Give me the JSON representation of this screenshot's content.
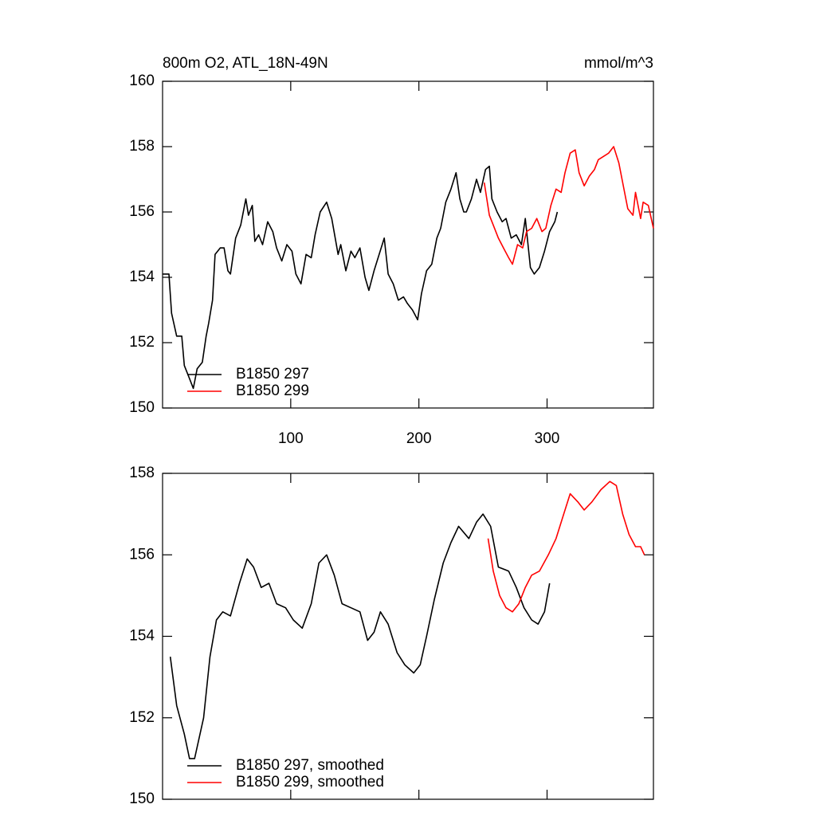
{
  "chart_data": [
    {
      "type": "line",
      "title": "800m O2, ATL_18N-49N",
      "units": "mmol/m^3",
      "xlim": [
        0,
        383
      ],
      "ylim": [
        150,
        160
      ],
      "xticks": [
        100,
        200,
        300
      ],
      "yticks": [
        150,
        152,
        154,
        156,
        158,
        160
      ],
      "xtick_labels": true,
      "series": [
        {
          "name": "B1850 297",
          "color": "#000000",
          "x": [
            0,
            5,
            7,
            11,
            15,
            17,
            21,
            24,
            27,
            31,
            34,
            36,
            39,
            41,
            45,
            48,
            51,
            53,
            57,
            61,
            65,
            67,
            70,
            72,
            75,
            78,
            82,
            86,
            89,
            93,
            97,
            101,
            104,
            108,
            112,
            116,
            119,
            123,
            128,
            132,
            137,
            139,
            143,
            147,
            150,
            154,
            158,
            161,
            165,
            169,
            173,
            176,
            180,
            184,
            188,
            191,
            195,
            199,
            202,
            206,
            210,
            214,
            217,
            221,
            225,
            229,
            232,
            235,
            237,
            241,
            245,
            248,
            252,
            255,
            257,
            261,
            265,
            268,
            272,
            276,
            280,
            283,
            287,
            290,
            294,
            298,
            302,
            306,
            308
          ],
          "values": [
            154.1,
            154.1,
            152.9,
            152.2,
            152.2,
            151.3,
            150.9,
            150.6,
            151.2,
            151.4,
            152.2,
            152.6,
            153.3,
            154.7,
            154.9,
            154.9,
            154.2,
            154.1,
            155.2,
            155.6,
            156.4,
            155.9,
            156.2,
            155.1,
            155.3,
            155.0,
            155.7,
            155.4,
            154.9,
            154.5,
            155.0,
            154.8,
            154.1,
            153.8,
            154.7,
            154.6,
            155.3,
            156.0,
            156.3,
            155.8,
            154.7,
            155.0,
            154.2,
            154.8,
            154.6,
            154.9,
            154.0,
            153.6,
            154.2,
            154.7,
            155.2,
            154.1,
            153.8,
            153.3,
            153.4,
            153.2,
            153.0,
            152.7,
            153.5,
            154.2,
            154.4,
            155.2,
            155.5,
            156.3,
            156.7,
            157.2,
            156.4,
            156.0,
            156.0,
            156.4,
            157.0,
            156.6,
            157.3,
            157.4,
            156.4,
            156.0,
            155.7,
            155.8,
            155.2,
            155.3,
            155.0,
            155.8,
            154.3,
            154.1,
            154.3,
            154.8,
            155.4,
            155.7,
            156.0
          ]
        },
        {
          "name": "B1850 299",
          "color": "#ff0000",
          "x": [
            251,
            255,
            258,
            262,
            266,
            270,
            273,
            277,
            281,
            284,
            288,
            292,
            296,
            299,
            303,
            307,
            311,
            314,
            318,
            322,
            325,
            329,
            333,
            337,
            340,
            344,
            348,
            352,
            356,
            359,
            363,
            367,
            369,
            373,
            375,
            379,
            383
          ],
          "values": [
            156.9,
            155.9,
            155.6,
            155.2,
            154.9,
            154.6,
            154.4,
            155.0,
            154.9,
            155.4,
            155.5,
            155.8,
            155.4,
            155.5,
            156.2,
            156.7,
            156.6,
            157.2,
            157.8,
            157.9,
            157.2,
            156.8,
            157.1,
            157.3,
            157.6,
            157.7,
            157.8,
            158.0,
            157.5,
            156.9,
            156.1,
            155.9,
            156.6,
            155.8,
            156.3,
            156.2,
            155.5
          ]
        }
      ]
    },
    {
      "type": "line",
      "xlim": [
        0,
        383
      ],
      "ylim": [
        150,
        158
      ],
      "xticks": [
        100,
        200,
        300
      ],
      "yticks": [
        150,
        152,
        154,
        156,
        158
      ],
      "xtick_labels": false,
      "series": [
        {
          "name": "B1850 297, smoothed",
          "color": "#000000",
          "x": [
            6,
            11,
            17,
            21,
            25,
            32,
            37,
            42,
            47,
            53,
            60,
            66,
            71,
            77,
            83,
            89,
            96,
            102,
            109,
            116,
            122,
            128,
            134,
            140,
            147,
            154,
            160,
            165,
            170,
            176,
            183,
            189,
            196,
            201,
            206,
            212,
            219,
            225,
            231,
            239,
            245,
            250,
            256,
            262,
            270,
            276,
            282,
            288,
            293,
            298,
            302
          ],
          "values": [
            153.5,
            152.3,
            151.6,
            151.0,
            151.0,
            152.0,
            153.5,
            154.4,
            154.6,
            154.5,
            155.3,
            155.9,
            155.7,
            155.2,
            155.3,
            154.8,
            154.7,
            154.4,
            154.2,
            154.8,
            155.8,
            156.0,
            155.5,
            154.8,
            154.7,
            154.6,
            153.9,
            154.1,
            154.6,
            154.3,
            153.6,
            153.3,
            153.1,
            153.3,
            154.0,
            154.9,
            155.8,
            156.3,
            156.7,
            156.4,
            156.8,
            157.0,
            156.7,
            155.7,
            155.6,
            155.2,
            154.7,
            154.4,
            154.3,
            154.6,
            155.3
          ]
        },
        {
          "name": "B1850 299, smoothed",
          "color": "#ff0000",
          "x": [
            254,
            258,
            263,
            268,
            273,
            278,
            283,
            288,
            294,
            301,
            307,
            312,
            318,
            324,
            329,
            335,
            342,
            349,
            354,
            359,
            364,
            369,
            373,
            376
          ],
          "values": [
            156.4,
            155.6,
            155.0,
            154.7,
            154.6,
            154.8,
            155.2,
            155.5,
            155.6,
            156.0,
            156.4,
            156.9,
            157.5,
            157.3,
            157.1,
            157.3,
            157.6,
            157.8,
            157.7,
            157.0,
            156.5,
            156.2,
            156.2,
            156.0
          ]
        }
      ]
    }
  ]
}
